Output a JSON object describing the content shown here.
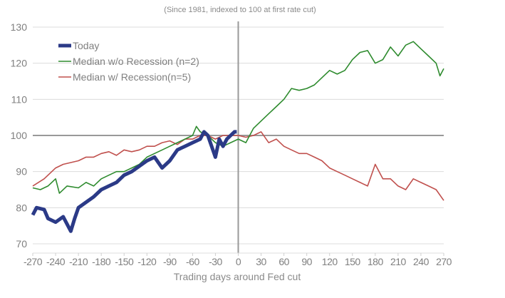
{
  "chart_data": {
    "type": "line",
    "subtitle": "(Since 1981, indexed to 100 at first rate cut)",
    "xlabel": "Trading days around Fed cut",
    "ylabel": "",
    "xlim": [
      -270,
      270
    ],
    "ylim": [
      70,
      130
    ],
    "xticks": [
      -270,
      -240,
      -210,
      -180,
      -150,
      -120,
      -90,
      -60,
      -30,
      0,
      30,
      60,
      90,
      120,
      150,
      180,
      210,
      240,
      270
    ],
    "yticks": [
      70,
      80,
      90,
      100,
      110,
      120,
      130
    ],
    "grid": "horizontal",
    "reference_lines": {
      "x": 0,
      "y": 100
    },
    "legend_position": "top-left",
    "series": [
      {
        "name": "Today",
        "color": "#2b3a87",
        "x": [
          -270,
          -265,
          -255,
          -250,
          -240,
          -230,
          -220,
          -215,
          -210,
          -200,
          -190,
          -180,
          -170,
          -160,
          -150,
          -140,
          -130,
          -120,
          -110,
          -100,
          -90,
          -80,
          -70,
          -60,
          -50,
          -45,
          -40,
          -35,
          -30,
          -25,
          -20,
          -15,
          -10,
          -5,
          -2
        ],
        "y": [
          78,
          80,
          79.5,
          77,
          76,
          77.5,
          73.5,
          77,
          80,
          81.5,
          83,
          85,
          86,
          87,
          89,
          90,
          91.5,
          93,
          94,
          91,
          93,
          96,
          97,
          98,
          99,
          101,
          100,
          97,
          94,
          99,
          97,
          99,
          100,
          101,
          101
        ]
      },
      {
        "name": "Median w/o Recession (n=2)",
        "color": "#2e8b2e",
        "x": [
          -270,
          -260,
          -250,
          -240,
          -235,
          -225,
          -210,
          -200,
          -190,
          -180,
          -170,
          -160,
          -150,
          -140,
          -130,
          -120,
          -110,
          -100,
          -90,
          -80,
          -70,
          -60,
          -55,
          -50,
          -40,
          -30,
          -20,
          -10,
          0,
          10,
          20,
          30,
          40,
          50,
          60,
          70,
          80,
          90,
          100,
          110,
          120,
          130,
          140,
          150,
          160,
          170,
          180,
          190,
          200,
          210,
          220,
          230,
          240,
          250,
          260,
          265,
          270
        ],
        "y": [
          85.5,
          85,
          86,
          88,
          84,
          86,
          85.5,
          87,
          86,
          88,
          89,
          90,
          90,
          91,
          92,
          94,
          95,
          96,
          97,
          98,
          99,
          100,
          102.5,
          101,
          100,
          98,
          97,
          98,
          99,
          98,
          102,
          104,
          106,
          108,
          110,
          113,
          112.5,
          113,
          114,
          116,
          118,
          117,
          118,
          121,
          123,
          123.5,
          120,
          121,
          124.5,
          122,
          125,
          126,
          124,
          122,
          120,
          116.5,
          118.5
        ]
      },
      {
        "name": "Median w/ Recession(n=5)",
        "color": "#c0504d",
        "x": [
          -270,
          -255,
          -240,
          -230,
          -210,
          -200,
          -190,
          -180,
          -170,
          -160,
          -150,
          -140,
          -130,
          -120,
          -110,
          -100,
          -90,
          -80,
          -70,
          -60,
          -50,
          -40,
          -30,
          -20,
          -10,
          0,
          10,
          20,
          30,
          40,
          50,
          60,
          70,
          80,
          90,
          100,
          110,
          120,
          130,
          140,
          150,
          160,
          170,
          180,
          190,
          200,
          210,
          220,
          230,
          240,
          250,
          260,
          270
        ],
        "y": [
          86,
          88,
          91,
          92,
          93,
          94,
          94,
          95,
          95.5,
          94.5,
          96,
          95.5,
          96,
          97,
          97,
          98,
          98.5,
          97.5,
          99,
          99,
          100,
          100,
          99,
          100,
          100,
          100,
          99.5,
          100,
          101,
          98,
          99,
          97,
          96,
          95,
          95,
          94,
          93,
          91,
          90,
          89,
          88,
          87,
          86,
          92,
          88,
          88,
          86,
          85,
          88,
          87,
          86,
          85,
          82
        ]
      }
    ]
  }
}
